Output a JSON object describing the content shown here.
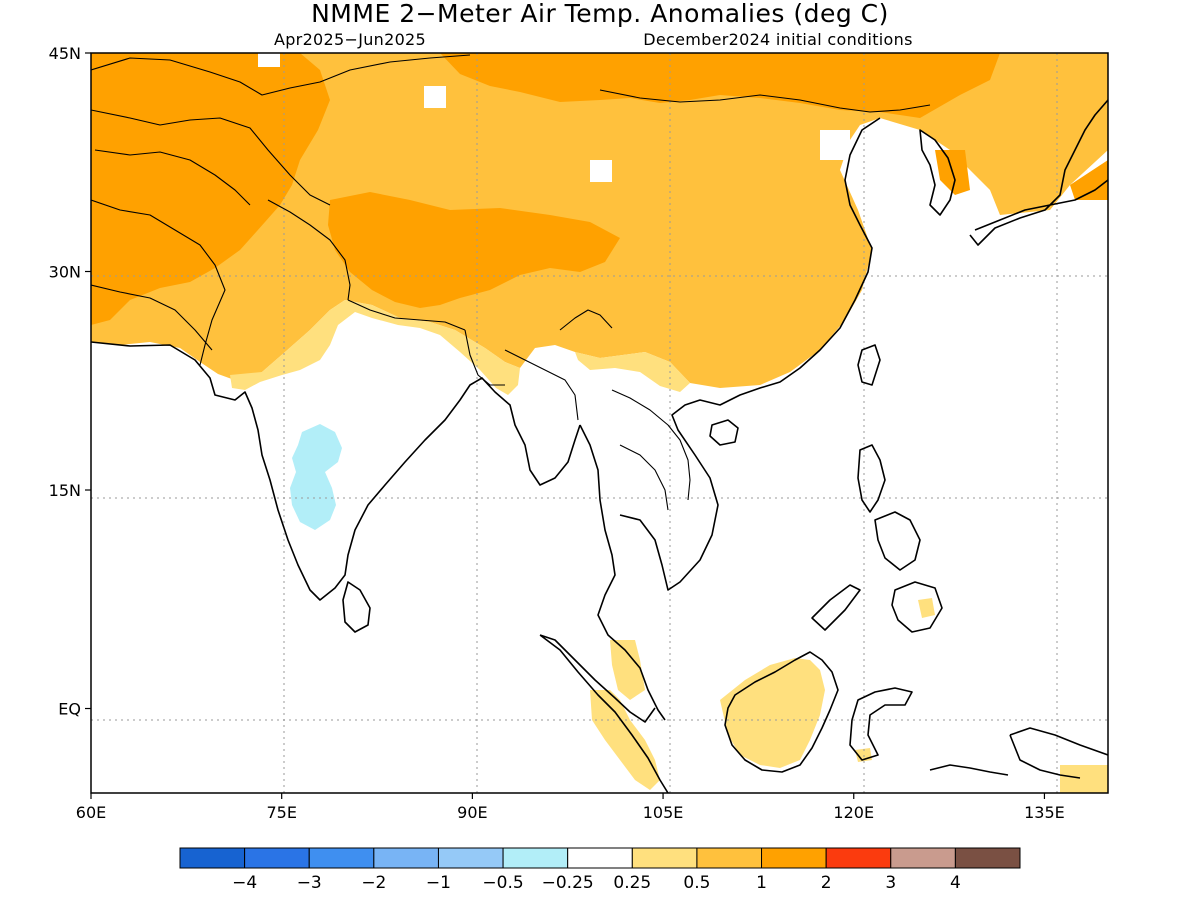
{
  "title": "NMME 2−Meter Air Temp. Anomalies (deg C)",
  "subtitle_left": "Apr2025−Jun2025",
  "subtitle_right": "December2024 initial conditions",
  "map": {
    "region": "South and East Asia",
    "lon_range": [
      60,
      140
    ],
    "lat_range": [
      -5.8,
      45
    ],
    "lon_ticks": [
      {
        "value": 60,
        "label": "60E"
      },
      {
        "value": 75,
        "label": "75E"
      },
      {
        "value": 90,
        "label": "90E"
      },
      {
        "value": 105,
        "label": "105E"
      },
      {
        "value": 120,
        "label": "120E"
      },
      {
        "value": 135,
        "label": "135E"
      }
    ],
    "lat_ticks": [
      {
        "value": 45,
        "label": "45N"
      },
      {
        "value": 30,
        "label": "30N"
      },
      {
        "value": 15,
        "label": "15N"
      },
      {
        "value": 0,
        "label": "EQ"
      }
    ],
    "grid": "dotted"
  },
  "colorbar": {
    "colors": [
      "#1763d1",
      "#2a74e6",
      "#3f8ff0",
      "#78b4f5",
      "#95c9f7",
      "#b2eef8",
      "#ffffff",
      "#ffe07e",
      "#ffc13d",
      "#ffa100",
      "#fb3b0e",
      "#c99b8e",
      "#7a5043"
    ],
    "labels": [
      "−4",
      "−3",
      "−2",
      "−1",
      "−0.5",
      "−0.25",
      "0.25",
      "0.5",
      "1",
      "2",
      "3",
      "4"
    ]
  }
}
